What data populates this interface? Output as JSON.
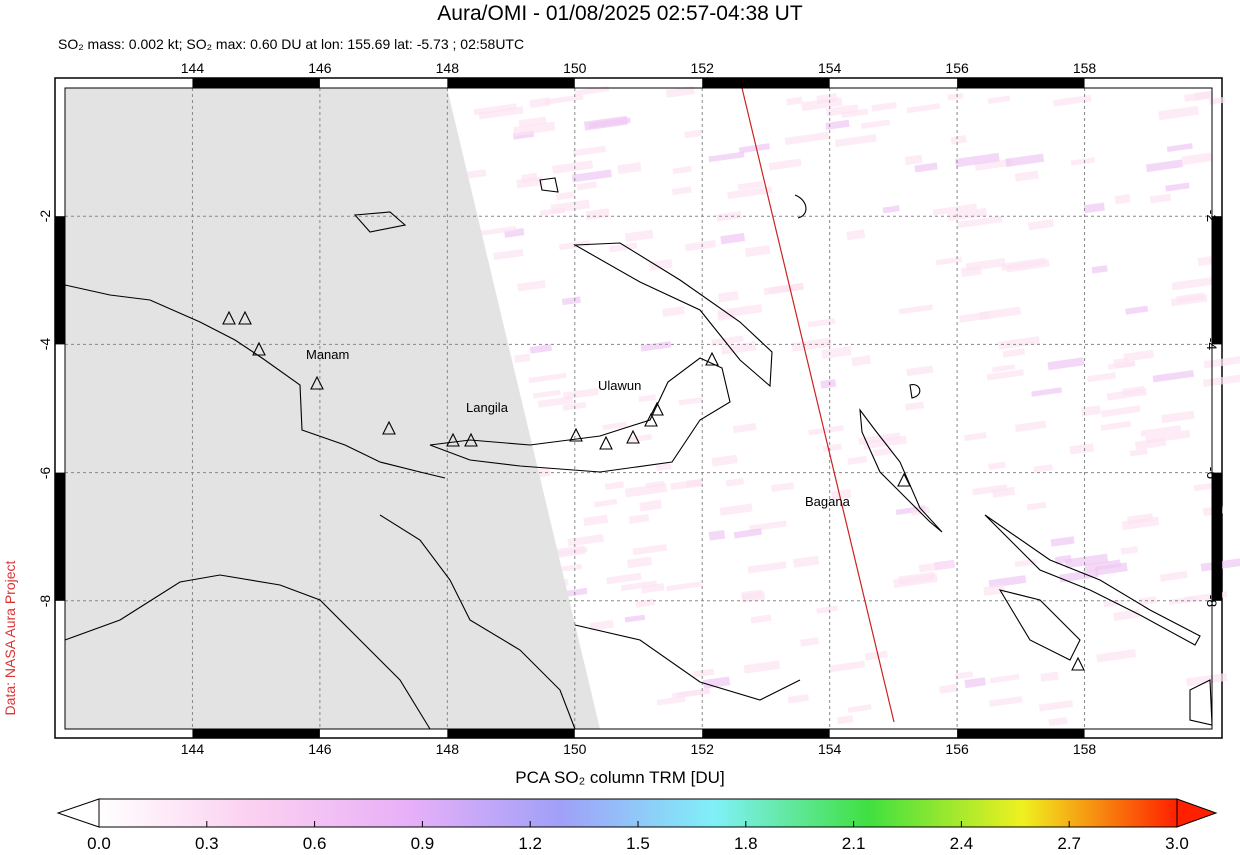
{
  "title": "Aura/OMI - 01/08/2025 02:57-04:38 UT",
  "subtitle": "SO₂ mass: 0.002 kt; SO₂ max: 0.60 DU at lon: 155.69 lat: -5.73 ; 02:58UTC",
  "credit": "Data: NASA Aura Project",
  "map": {
    "lon_range": [
      142,
      160
    ],
    "lat_range": [
      -10,
      0
    ],
    "lon_ticks": [
      "144",
      "146",
      "148",
      "150",
      "152",
      "154",
      "156",
      "158"
    ],
    "lat_ticks": [
      "-2",
      "-4",
      "-6",
      "-8"
    ],
    "grid": "dashed",
    "volcanoes": [
      "Manam",
      "Langila",
      "Ulawun",
      "Bagana"
    ],
    "colors": {
      "no_data": "#e3e3e3",
      "orbit_track": "#cc2222",
      "coastline": "#000000"
    }
  },
  "colorbar": {
    "title": "PCA SO₂ column TRM [DU]",
    "ticks": [
      "0.0",
      "0.3",
      "0.6",
      "0.9",
      "1.2",
      "1.5",
      "1.8",
      "2.1",
      "2.4",
      "2.7",
      "3.0"
    ],
    "range": [
      0,
      3
    ],
    "colors": [
      "#ffffff",
      "#fbd0f0",
      "#e8b0f8",
      "#a0a0f8",
      "#80f0f8",
      "#40e040",
      "#f0f020",
      "#ff2000"
    ]
  }
}
